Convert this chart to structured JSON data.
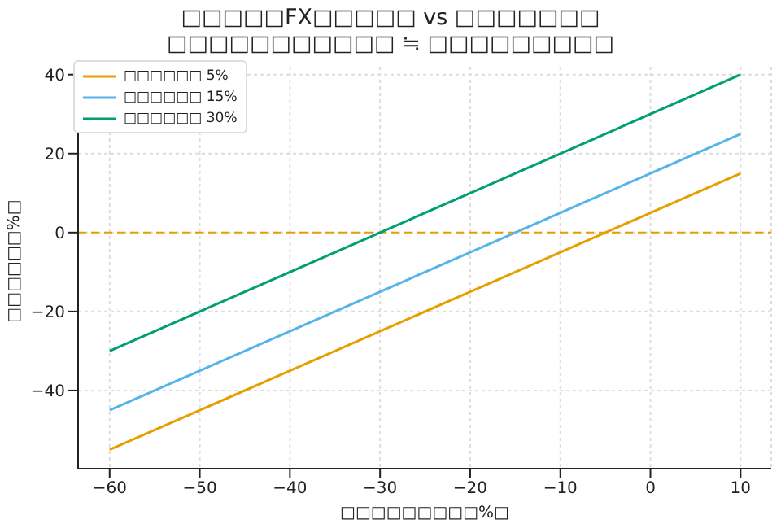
{
  "chart_data": {
    "type": "line",
    "title": "□□□□□FX□□□□□ vs □□□□□□□\n□□□□□□□□□□□ ≒ □□□□□□□□□",
    "xlabel": "□□□□□□□□□%□",
    "ylabel": "□□□□□□%□",
    "x": [
      -60,
      -50,
      -40,
      -30,
      -20,
      -10,
      0,
      10
    ],
    "series": [
      {
        "name": "□□□□□□ 5%",
        "color": "#e69f00",
        "values": [
          -55,
          -45,
          -35,
          -25,
          -15,
          -5,
          5,
          15
        ]
      },
      {
        "name": "□□□□□□ 15%",
        "color": "#56b4e9",
        "values": [
          -45,
          -35,
          -25,
          -15,
          -5,
          5,
          15,
          25
        ]
      },
      {
        "name": "□□□□□□ 30%",
        "color": "#009e73",
        "values": [
          -30,
          -20,
          -10,
          0,
          10,
          20,
          30,
          40
        ]
      }
    ],
    "xlim": [
      -63.5,
      13.4
    ],
    "xticks": [
      -60,
      -50,
      -40,
      -30,
      -20,
      -10,
      0,
      10
    ],
    "ylim": [
      -59.8,
      45.3
    ],
    "yticks": [
      -40,
      -20,
      0,
      20,
      40
    ],
    "ref_lines": [
      {
        "axis": "y",
        "value": 0,
        "color": "#e69f00",
        "line_style": "dashed"
      }
    ],
    "grid": true,
    "legend": "top left",
    "marker": "none",
    "line_style": "solid"
  }
}
